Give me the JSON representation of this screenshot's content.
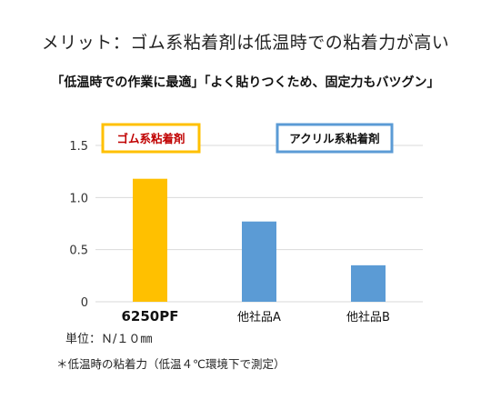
{
  "title": "メリット：ゴム系粘着剤は低温時での粘着力が高い",
  "subtitle": "「低温時での作業に最適」「よく貼りつくため、固定力もバツグン」",
  "chart_data": {
    "type": "bar",
    "categories": [
      "6250PF",
      "他社品A",
      "他社品B"
    ],
    "values": [
      1.18,
      0.77,
      0.35
    ],
    "bar_colors": [
      "#FFC000",
      "#5B9BD5",
      "#5B9BD5"
    ],
    "ylim": [
      0,
      1.5
    ],
    "yticks": [
      0,
      0.5,
      1.0,
      1.5
    ],
    "ytick_labels": [
      "0",
      "0.5",
      "1.0",
      "1.5"
    ],
    "grid": true,
    "legend_boxes": [
      {
        "label": "ゴム系粘着剤",
        "border_color": "#FFC000",
        "text_color": "#C00000"
      },
      {
        "label": "アクリル系粘着剤",
        "border_color": "#5B9BD5",
        "text_color": "#111111"
      }
    ]
  },
  "unit_label": "単位：Ｎ/１０㎜",
  "note": "＊低温時の粘着力（低温４℃環境下で測定）"
}
